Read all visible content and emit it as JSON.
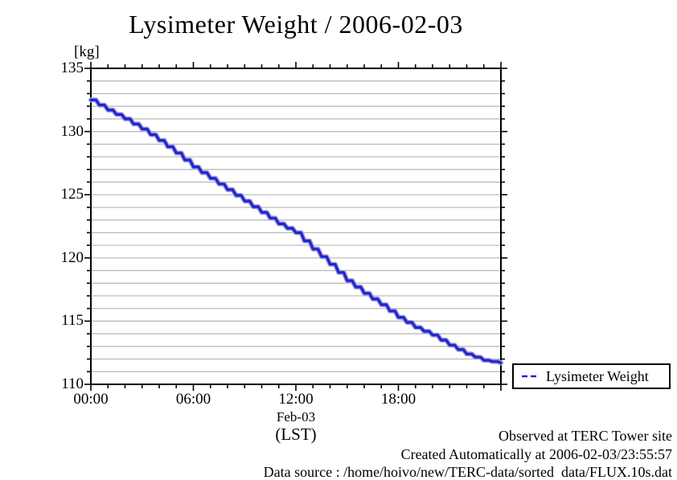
{
  "title": "Lysimeter Weight / 2006-02-03",
  "y_axis": {
    "unit_label": "[kg]",
    "min": 110,
    "max": 135,
    "major_step": 5,
    "minor_step": 1,
    "major_tick_labels": [
      "110",
      "115",
      "120",
      "125",
      "130",
      "135"
    ]
  },
  "x_axis": {
    "min_hour": 0,
    "max_hour": 24,
    "minor_step_hours": 1,
    "major_ticks": [
      {
        "hour": 0,
        "label": "00:00"
      },
      {
        "hour": 6,
        "label": "06:00"
      },
      {
        "hour": 12,
        "label": "12:00"
      },
      {
        "hour": 18,
        "label": "18:00"
      }
    ],
    "date_label": "Feb-03",
    "tz_label": "(LST)"
  },
  "legend": {
    "label": "Lysimeter Weight",
    "position": "outside-bottom-right",
    "sample_style": "blue-dashed-line"
  },
  "footer": {
    "observed": "Observed at TERC Tower site",
    "created": "Created Automatically at 2006-02-03/23:55:57",
    "source": "Data source : /home/hoivo/new/TERC-data/sorted  data/FLUX.10s.dat"
  },
  "colors": {
    "line": "#2323cd",
    "line_halo": "#9a9ae0",
    "grid": "#b6b6b6",
    "axis": "#000000",
    "background": "#ffffff"
  },
  "chart_data": {
    "type": "line",
    "title": "Lysimeter Weight / 2006-02-03",
    "series_name": "Lysimeter Weight",
    "xlabel": "Feb-03 (LST)",
    "ylabel": "[kg]",
    "xlim": [
      0,
      24
    ],
    "ylim": [
      110,
      135
    ],
    "grid": "horizontal-minor-every-1kg",
    "line_style": "staircase-declining",
    "x_hours": [
      0,
      1,
      2,
      3,
      4,
      5,
      6,
      7,
      8,
      9,
      10,
      11,
      12,
      13,
      14,
      15,
      16,
      17,
      18,
      19,
      20,
      21,
      22,
      23,
      24
    ],
    "values": [
      132.5,
      131.7,
      131.0,
      130.2,
      129.3,
      128.3,
      127.2,
      126.3,
      125.4,
      124.5,
      123.6,
      122.7,
      122.0,
      120.7,
      119.5,
      118.2,
      117.2,
      116.3,
      115.3,
      114.5,
      113.9,
      113.1,
      112.4,
      111.9,
      111.7
    ]
  }
}
